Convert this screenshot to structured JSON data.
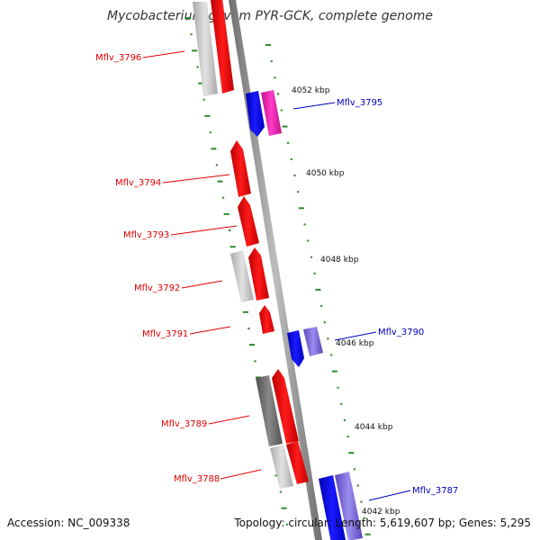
{
  "title": "Mycobacterium gilvum PYR-GCK, complete genome",
  "footer": {
    "accession": "Accession: NC_009338",
    "summary": "Topology: circular; Length: 5,619,607 bp; Genes: 5,295"
  },
  "colors": {
    "reverse_label": "#dd0000",
    "forward_label": "#0000bb",
    "backbone": "#8a8a8a",
    "tick": "#2a8a2a"
  },
  "ticks": [
    {
      "label": "4052 kbp"
    },
    {
      "label": "4050 kbp"
    },
    {
      "label": "4048 kbp"
    },
    {
      "label": "4046 kbp"
    },
    {
      "label": "4044 kbp"
    },
    {
      "label": "4042 kbp"
    }
  ],
  "gene_labels": [
    {
      "name": "Mflv_3796",
      "strand": "reverse"
    },
    {
      "name": "Mflv_3795",
      "strand": "forward"
    },
    {
      "name": "Mflv_3794",
      "strand": "reverse"
    },
    {
      "name": "Mflv_3793",
      "strand": "reverse"
    },
    {
      "name": "Mflv_3792",
      "strand": "reverse"
    },
    {
      "name": "Mflv_3791",
      "strand": "reverse"
    },
    {
      "name": "Mflv_3790",
      "strand": "forward"
    },
    {
      "name": "Mflv_3789",
      "strand": "reverse"
    },
    {
      "name": "Mflv_3788",
      "strand": "reverse"
    },
    {
      "name": "Mflv_3787",
      "strand": "forward"
    }
  ]
}
